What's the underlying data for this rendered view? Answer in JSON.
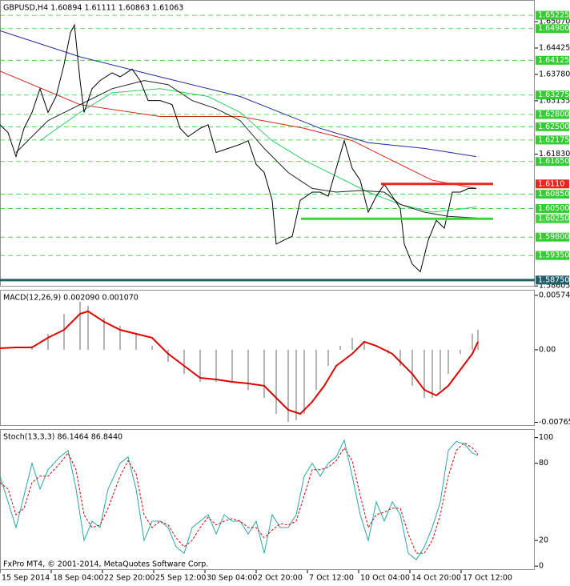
{
  "chart_data": [
    {
      "type": "line",
      "title": "GBPUSD,H4 1.60894 1.61111 1.60863 1.61063",
      "xlim": [
        0,
        167
      ],
      "ylim": [
        1.5859,
        1.6558
      ],
      "yticks": [
        {
          "value": 1.6507,
          "label": "1.65070"
        },
        1.64425,
        {
          "value": 1.6378,
          "label": "1.63780"
        },
        1.63135,
        {
          "value": 1.6183,
          "label": "1.61830"
        },
        1.58605
      ],
      "level_color": "#33cc33",
      "levels": [
        1.65225,
        {
          "value": 1.649,
          "label": "1.64900"
        },
        1.64125,
        1.63275,
        {
          "value": 1.628,
          "label": "1.62800"
        },
        {
          "value": 1.625,
          "label": "1.62500"
        },
        1.62175,
        {
          "value": 1.6165,
          "label": "1.61650"
        },
        {
          "value": 1.6085,
          "label": "1.60850"
        },
        {
          "value": 1.605,
          "label": "1.60500"
        },
        {
          "value": 1.598,
          "label": "1.59800"
        },
        {
          "value": 1.5935,
          "label": "1.59350"
        }
      ],
      "lines": [
        {
          "value": 1.611,
          "label": "1.6110",
          "color": "#e8261c",
          "from": 119,
          "to": 154
        },
        {
          "value": 1.6025,
          "label": "1.60250",
          "color": "#3fd13f",
          "from": 94,
          "to": 154
        },
        {
          "value": 1.5875,
          "label": "1.58750",
          "color": "#1e5f6a",
          "from": 0,
          "to": 167
        }
      ],
      "series": [
        {
          "color": "#1f2a9c",
          "x": [
            0,
            25,
            50,
            75,
            100,
            115,
            132.5,
            148.75
          ],
          "values": [
            1.6485,
            1.6421,
            1.6372,
            1.6324,
            1.6246,
            1.6211,
            1.6197,
            1.6177
          ]
        },
        {
          "color": "#d9261c",
          "x": [
            0,
            25,
            50,
            75,
            95,
            110,
            120,
            135,
            148.75
          ],
          "values": [
            1.6386,
            1.6304,
            1.6275,
            1.6275,
            1.6246,
            1.6216,
            1.6177,
            1.6119,
            1.6099
          ]
        },
        {
          "color": "#33cc66",
          "x": [
            12.5,
            25,
            35,
            50,
            65,
            75,
            85,
            95,
            105,
            115,
            125,
            135,
            145,
            148.75
          ],
          "values": [
            1.6216,
            1.6285,
            1.6333,
            1.6343,
            1.6324,
            1.6285,
            1.6216,
            1.6168,
            1.6129,
            1.609,
            1.606,
            1.6041,
            1.605,
            1.6054
          ]
        },
        {
          "color": "#222222",
          "x": [
            5,
            15,
            25,
            35,
            45,
            52.5,
            60,
            67.5,
            75,
            82.5,
            90,
            97.5,
            105,
            112.5,
            120,
            125,
            132.5,
            140,
            148.75
          ],
          "values": [
            1.6187,
            1.6265,
            1.6304,
            1.6343,
            1.6363,
            1.6353,
            1.6314,
            1.6294,
            1.6265,
            1.6197,
            1.6138,
            1.6099,
            1.609,
            1.6094,
            1.609,
            1.606,
            1.6041,
            1.6031,
            1.6027
          ]
        },
        {
          "color": "#000000",
          "x": [
            0,
            2.5,
            5,
            7.5,
            10,
            12.5,
            15,
            17.5,
            20,
            22,
            23.25,
            25,
            26.25,
            28.75,
            31.25,
            35,
            37.5,
            41.25,
            43.75,
            46.25,
            50,
            53.75,
            56.25,
            58.75,
            62.5,
            65,
            67.5,
            71.25,
            75,
            77.5,
            80,
            82.5,
            85,
            86.25,
            88.75,
            91.25,
            93.75,
            97.5,
            100,
            102.5,
            105,
            107.5,
            110,
            112.5,
            115,
            117.5,
            120,
            122.5,
            125,
            126.25,
            128.75,
            131.25,
            133.75,
            136.25,
            138.75,
            141.25,
            143.75,
            146.25,
            148.75
          ],
          "values": [
            1.6255,
            1.6236,
            1.6177,
            1.6246,
            1.6285,
            1.6343,
            1.6285,
            1.6324,
            1.6402,
            1.648,
            1.6499,
            1.6363,
            1.6285,
            1.6343,
            1.6363,
            1.6382,
            1.6372,
            1.6391,
            1.6363,
            1.6314,
            1.6314,
            1.6304,
            1.6246,
            1.6226,
            1.6246,
            1.6255,
            1.6187,
            1.6197,
            1.6207,
            1.6216,
            1.6158,
            1.6138,
            1.607,
            1.5963,
            1.5973,
            1.5982,
            1.607,
            1.609,
            1.609,
            1.608,
            1.6148,
            1.6216,
            1.6148,
            1.6119,
            1.6041,
            1.608,
            1.6109,
            1.608,
            1.605,
            1.5963,
            1.5914,
            1.5895,
            1.5973,
            1.6021,
            1.6002,
            1.609,
            1.609,
            1.6099,
            1.6099
          ]
        }
      ]
    },
    {
      "type": "macd",
      "title": "MACD(12,26,9) 0.002090 0.001070",
      "xlim": [
        0,
        167
      ],
      "ylim": [
        -0.00803,
        0.00625
      ],
      "yticks": [
        0.005749,
        {
          "value": 0,
          "label": "0.00"
        },
        -0.00765
      ],
      "histogram_color": "#b4b4b4",
      "signal_color": "#e00000",
      "histogram_x": [
        0,
        10,
        15,
        20,
        25,
        27.5,
        32.5,
        37.5,
        42.5,
        47.5,
        52.5,
        57.5,
        62.5,
        67.5,
        72.5,
        77.5,
        82.5,
        86.25,
        90,
        92.5,
        95,
        98.75,
        102.5,
        106.25,
        110,
        113.75,
        117.5,
        121.25,
        125,
        128.75,
        132.5,
        135,
        137.5,
        140,
        143.75,
        147.5,
        149.25
      ],
      "histogram": [
        0,
        0.00042,
        0.00169,
        0.0038,
        0.00507,
        0.00465,
        0.00338,
        0.00254,
        0.00169,
        0.00042,
        -0.00127,
        -0.00254,
        -0.00338,
        -0.00338,
        -0.00338,
        -0.00423,
        -0.00507,
        -0.00676,
        -0.0076,
        -0.00744,
        -0.00676,
        -0.00423,
        -0.00169,
        0.00042,
        0.00127,
        0.00085,
        0,
        -0.00042,
        -0.00169,
        -0.0038,
        -0.00507,
        -0.00507,
        -0.00423,
        -0.00254,
        -0.00042,
        0.00169,
        0.00211
      ],
      "signal_x": [
        0,
        5,
        10,
        15,
        20,
        25,
        27.5,
        32.5,
        37.5,
        42.5,
        47.5,
        52.5,
        57.5,
        62.5,
        67.5,
        72.5,
        77.5,
        82.5,
        86.25,
        90,
        93.75,
        97.5,
        101.25,
        105,
        110,
        113.75,
        117.5,
        122.5,
        125,
        128.75,
        132.5,
        136.25,
        140,
        143.75,
        147.5,
        149.25
      ],
      "signal": [
        0.00017,
        0.00025,
        0.00025,
        0.00127,
        0.00211,
        0.0038,
        0.00406,
        0.00296,
        0.00211,
        0.00169,
        0.00127,
        -0.00042,
        -0.00169,
        -0.00296,
        -0.00313,
        -0.00338,
        -0.00355,
        -0.0038,
        -0.00507,
        -0.00634,
        -0.00676,
        -0.00549,
        -0.0038,
        -0.00169,
        -0.00042,
        0.00085,
        0.00042,
        -0.00042,
        -0.00127,
        -0.00254,
        -0.00423,
        -0.00482,
        -0.0038,
        -0.00211,
        -0.00042,
        0.00085
      ]
    },
    {
      "type": "stochastic",
      "title": "Stoch(13,3,3) 86.1464 86.8440",
      "xlim": [
        0,
        167
      ],
      "ylim": [
        -3,
        106
      ],
      "yticks": [
        0,
        20,
        80,
        100
      ],
      "xticks": [
        {
          "value": 0,
          "label": "15 Sep 2014"
        },
        {
          "value": 16,
          "label": "18 Sep 04:00"
        },
        {
          "value": 32,
          "label": "22 Sep 20:00"
        },
        {
          "value": 48,
          "label": "25 Sep 12:00"
        },
        {
          "value": 64,
          "label": "30 Sep 04:00"
        },
        {
          "value": 80,
          "label": "2 Oct 20:00"
        },
        {
          "value": 96,
          "label": "7 Oct 12:00"
        },
        {
          "value": 112,
          "label": "10 Oct 04:00"
        },
        {
          "value": 128,
          "label": "14 Oct 20:00"
        },
        {
          "value": 144,
          "label": "17 Oct 12:00"
        }
      ],
      "series": [
        {
          "color": "#2aa6a6",
          "dashed": false,
          "x": [
            0,
            2.5,
            5,
            7.5,
            10,
            12.5,
            15,
            18.75,
            21.25,
            23.75,
            26.25,
            28.75,
            31.25,
            33.75,
            37.5,
            40,
            42.5,
            45,
            47.5,
            50,
            52.5,
            55,
            57.5,
            60,
            62.5,
            65,
            67.5,
            70,
            72.5,
            75,
            77.5,
            80,
            82.5,
            85,
            87.5,
            90,
            92.5,
            95,
            97.5,
            100,
            102.5,
            105,
            107.5,
            110,
            112.5,
            115,
            117.5,
            120,
            122.5,
            125,
            127.5,
            130,
            132.5,
            135,
            137.5,
            140,
            142.5,
            145,
            147.5,
            149.25
          ],
          "values": [
            70,
            50,
            30,
            55,
            80,
            60,
            75,
            85,
            90,
            60,
            20,
            35,
            30,
            60,
            80,
            85,
            60,
            20,
            35,
            35,
            30,
            15,
            10,
            30,
            35,
            40,
            25,
            40,
            35,
            35,
            25,
            35,
            10,
            40,
            30,
            30,
            40,
            70,
            80,
            70,
            80,
            85,
            98,
            70,
            40,
            20,
            50,
            35,
            50,
            40,
            10,
            5,
            15,
            30,
            50,
            90,
            97,
            95,
            88,
            86
          ]
        },
        {
          "color": "#e00000",
          "dashed": true,
          "x": [
            0,
            2.5,
            5,
            7.5,
            10,
            12.5,
            15,
            18.75,
            21.25,
            23.75,
            26.25,
            28.75,
            31.25,
            33.75,
            37.5,
            40,
            42.5,
            45,
            47.5,
            50,
            52.5,
            55,
            57.5,
            60,
            62.5,
            65,
            67.5,
            70,
            72.5,
            75,
            77.5,
            80,
            82.5,
            85,
            87.5,
            90,
            92.5,
            95,
            97.5,
            100,
            102.5,
            105,
            107.5,
            110,
            112.5,
            115,
            117.5,
            120,
            122.5,
            125,
            127.5,
            130,
            132.5,
            135,
            137.5,
            140,
            142.5,
            145,
            147.5,
            149.25
          ],
          "values": [
            65,
            60,
            40,
            45,
            65,
            70,
            70,
            80,
            88,
            75,
            40,
            30,
            32,
            45,
            70,
            82,
            72,
            40,
            30,
            35,
            32,
            22,
            15,
            20,
            30,
            38,
            32,
            35,
            37,
            35,
            30,
            30,
            22,
            28,
            33,
            32,
            35,
            55,
            75,
            75,
            77,
            82,
            92,
            82,
            55,
            30,
            40,
            42,
            45,
            45,
            25,
            10,
            10,
            20,
            40,
            70,
            90,
            96,
            92,
            87
          ]
        }
      ]
    }
  ],
  "footer": "FxPro MT4, © 2001-2014, MetaQuotes Software Corp."
}
